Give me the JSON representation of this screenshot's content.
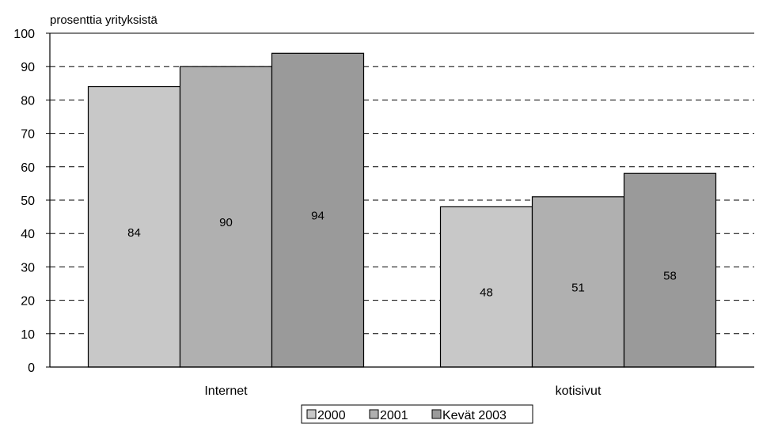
{
  "chart_data": {
    "type": "bar",
    "title": "",
    "ylabel": "prosenttia yrityksistä",
    "xlabel": "",
    "categories": [
      "Internet",
      "kotisivut"
    ],
    "series": [
      {
        "name": "2000",
        "values": [
          84,
          48
        ],
        "color": "#c8c8c8"
      },
      {
        "name": "2001",
        "values": [
          90,
          51
        ],
        "color": "#b0b0b0"
      },
      {
        "name": "Kevät 2003",
        "values": [
          94,
          58
        ],
        "color": "#9a9a9a"
      }
    ],
    "ylim": [
      0,
      100
    ],
    "yticks": [
      0,
      10,
      20,
      30,
      40,
      50,
      60,
      70,
      80,
      90,
      100
    ],
    "grid": "dashed horizontal",
    "legend": "bottom-center"
  }
}
